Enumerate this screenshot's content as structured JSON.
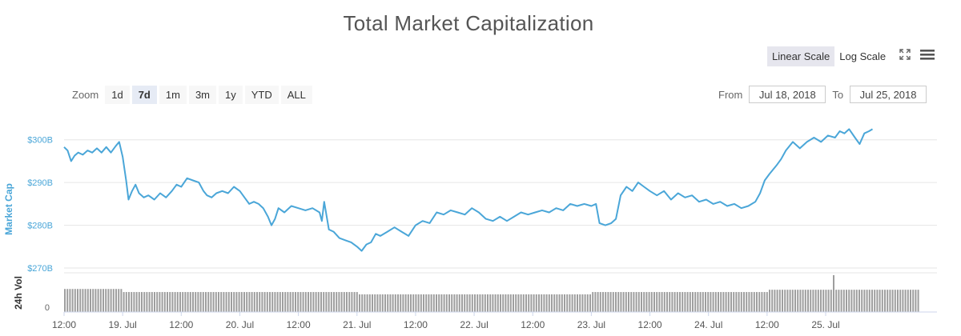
{
  "chart_data": {
    "type": "line",
    "title": "Total Market Capitalization",
    "ylabel": "Market Cap",
    "vol_label": "24h Vol",
    "vol_zero_label": "0",
    "ylim": [
      270,
      305
    ],
    "ytick_values": [
      270,
      280,
      290,
      300
    ],
    "ytick_labels": [
      "$270B",
      "$280B",
      "$290B",
      "$300B"
    ],
    "xlim": [
      0.5,
      7.95
    ],
    "xticks": [
      {
        "x": 0.5,
        "label": "12:00"
      },
      {
        "x": 1.0,
        "label": "19. Jul"
      },
      {
        "x": 1.5,
        "label": "12:00"
      },
      {
        "x": 2.0,
        "label": "20. Jul"
      },
      {
        "x": 2.5,
        "label": "12:00"
      },
      {
        "x": 3.0,
        "label": "21. Jul"
      },
      {
        "x": 3.5,
        "label": "12:00"
      },
      {
        "x": 4.0,
        "label": "22. Jul"
      },
      {
        "x": 4.5,
        "label": "12:00"
      },
      {
        "x": 5.0,
        "label": "23. Jul"
      },
      {
        "x": 5.5,
        "label": "12:00"
      },
      {
        "x": 6.0,
        "label": "24. Jul"
      },
      {
        "x": 6.5,
        "label": "12:00"
      },
      {
        "x": 7.0,
        "label": "25. Jul"
      }
    ],
    "grid": true,
    "line_color": "#4aa6d8",
    "series": [
      {
        "name": "Market Cap",
        "points": [
          [
            0.5,
            298.3
          ],
          [
            0.53,
            297.5
          ],
          [
            0.56,
            295.0
          ],
          [
            0.59,
            296.3
          ],
          [
            0.62,
            297.0
          ],
          [
            0.66,
            296.5
          ],
          [
            0.7,
            297.5
          ],
          [
            0.74,
            297.0
          ],
          [
            0.78,
            298.0
          ],
          [
            0.82,
            297.0
          ],
          [
            0.86,
            298.3
          ],
          [
            0.9,
            297.0
          ],
          [
            0.94,
            298.5
          ],
          [
            0.97,
            299.5
          ],
          [
            1.0,
            296.0
          ],
          [
            1.03,
            290.5
          ],
          [
            1.05,
            286.0
          ],
          [
            1.08,
            288.0
          ],
          [
            1.11,
            289.5
          ],
          [
            1.14,
            287.5
          ],
          [
            1.18,
            286.5
          ],
          [
            1.22,
            287.0
          ],
          [
            1.27,
            286.0
          ],
          [
            1.32,
            287.5
          ],
          [
            1.37,
            286.5
          ],
          [
            1.42,
            288.0
          ],
          [
            1.46,
            289.5
          ],
          [
            1.5,
            289.0
          ],
          [
            1.55,
            291.0
          ],
          [
            1.6,
            290.5
          ],
          [
            1.65,
            290.0
          ],
          [
            1.69,
            288.0
          ],
          [
            1.72,
            287.0
          ],
          [
            1.76,
            286.5
          ],
          [
            1.8,
            287.5
          ],
          [
            1.85,
            288.0
          ],
          [
            1.9,
            287.5
          ],
          [
            1.95,
            289.0
          ],
          [
            2.0,
            288.0
          ],
          [
            2.04,
            286.5
          ],
          [
            2.08,
            285.0
          ],
          [
            2.12,
            285.5
          ],
          [
            2.16,
            285.0
          ],
          [
            2.2,
            284.0
          ],
          [
            2.24,
            282.0
          ],
          [
            2.27,
            280.0
          ],
          [
            2.3,
            281.5
          ],
          [
            2.33,
            284.0
          ],
          [
            2.38,
            283.0
          ],
          [
            2.44,
            284.5
          ],
          [
            2.5,
            284.0
          ],
          [
            2.56,
            283.5
          ],
          [
            2.62,
            284.0
          ],
          [
            2.68,
            283.0
          ],
          [
            2.7,
            281.0
          ],
          [
            2.72,
            285.5
          ],
          [
            2.76,
            279.0
          ],
          [
            2.8,
            278.5
          ],
          [
            2.85,
            277.0
          ],
          [
            2.9,
            276.5
          ],
          [
            2.95,
            276.0
          ],
          [
            3.0,
            275.0
          ],
          [
            3.04,
            274.0
          ],
          [
            3.08,
            275.5
          ],
          [
            3.12,
            276.0
          ],
          [
            3.16,
            278.0
          ],
          [
            3.2,
            277.5
          ],
          [
            3.26,
            278.5
          ],
          [
            3.32,
            279.5
          ],
          [
            3.38,
            278.5
          ],
          [
            3.44,
            277.5
          ],
          [
            3.5,
            280.0
          ],
          [
            3.56,
            281.0
          ],
          [
            3.62,
            280.5
          ],
          [
            3.68,
            283.0
          ],
          [
            3.74,
            282.5
          ],
          [
            3.8,
            283.5
          ],
          [
            3.86,
            283.0
          ],
          [
            3.92,
            282.5
          ],
          [
            3.98,
            284.0
          ],
          [
            4.04,
            283.0
          ],
          [
            4.1,
            281.5
          ],
          [
            4.16,
            281.0
          ],
          [
            4.22,
            282.0
          ],
          [
            4.28,
            281.0
          ],
          [
            4.34,
            282.0
          ],
          [
            4.4,
            283.0
          ],
          [
            4.46,
            282.5
          ],
          [
            4.52,
            283.0
          ],
          [
            4.58,
            283.5
          ],
          [
            4.64,
            283.0
          ],
          [
            4.7,
            284.0
          ],
          [
            4.76,
            283.5
          ],
          [
            4.82,
            285.0
          ],
          [
            4.88,
            284.5
          ],
          [
            4.94,
            285.0
          ],
          [
            5.0,
            284.5
          ],
          [
            5.04,
            285.0
          ],
          [
            5.07,
            280.5
          ],
          [
            5.12,
            280.0
          ],
          [
            5.17,
            280.5
          ],
          [
            5.21,
            281.5
          ],
          [
            5.25,
            287.0
          ],
          [
            5.3,
            289.0
          ],
          [
            5.35,
            288.0
          ],
          [
            5.4,
            290.0
          ],
          [
            5.45,
            289.0
          ],
          [
            5.5,
            288.0
          ],
          [
            5.56,
            287.0
          ],
          [
            5.62,
            288.0
          ],
          [
            5.68,
            286.0
          ],
          [
            5.74,
            287.5
          ],
          [
            5.8,
            286.5
          ],
          [
            5.86,
            287.0
          ],
          [
            5.92,
            285.5
          ],
          [
            5.98,
            286.0
          ],
          [
            6.04,
            285.0
          ],
          [
            6.1,
            285.5
          ],
          [
            6.16,
            284.5
          ],
          [
            6.22,
            285.0
          ],
          [
            6.28,
            284.0
          ],
          [
            6.34,
            284.5
          ],
          [
            6.4,
            285.5
          ],
          [
            6.44,
            287.5
          ],
          [
            6.48,
            290.5
          ],
          [
            6.52,
            292.0
          ],
          [
            6.58,
            294.0
          ],
          [
            6.62,
            295.5
          ],
          [
            6.66,
            297.5
          ],
          [
            6.72,
            299.5
          ],
          [
            6.78,
            298.0
          ],
          [
            6.84,
            299.5
          ],
          [
            6.9,
            300.5
          ],
          [
            6.96,
            299.5
          ],
          [
            7.02,
            301.0
          ],
          [
            7.08,
            300.5
          ],
          [
            7.12,
            302.0
          ],
          [
            7.16,
            301.5
          ],
          [
            7.2,
            302.5
          ],
          [
            7.25,
            300.5
          ],
          [
            7.29,
            299.0
          ],
          [
            7.33,
            301.5
          ],
          [
            7.37,
            302.0
          ],
          [
            7.4,
            302.5
          ]
        ]
      }
    ],
    "volume_bar_color": "#9e9e9e",
    "volume_ylim": [
      0,
      100
    ],
    "volume": [
      {
        "x_start": 0.5,
        "x_end": 1.0,
        "level": 60
      },
      {
        "x_start": 1.0,
        "x_end": 3.0,
        "level": 52
      },
      {
        "x_start": 3.0,
        "x_end": 5.0,
        "level": 46
      },
      {
        "x_start": 5.0,
        "x_end": 6.5,
        "level": 52
      },
      {
        "x_start": 6.5,
        "x_end": 7.8,
        "level": 58
      },
      {
        "x_start": 7.05,
        "x_end": 7.08,
        "level": 96
      }
    ]
  },
  "controls": {
    "linear_scale": "Linear Scale",
    "log_scale": "Log Scale",
    "zoom_label": "Zoom",
    "zoom_buttons": [
      "1d",
      "7d",
      "1m",
      "3m",
      "1y",
      "YTD",
      "ALL"
    ],
    "zoom_active": "7d",
    "from_label": "From",
    "from_value": "Jul 18, 2018",
    "to_label": "To",
    "to_value": "Jul 25, 2018"
  }
}
